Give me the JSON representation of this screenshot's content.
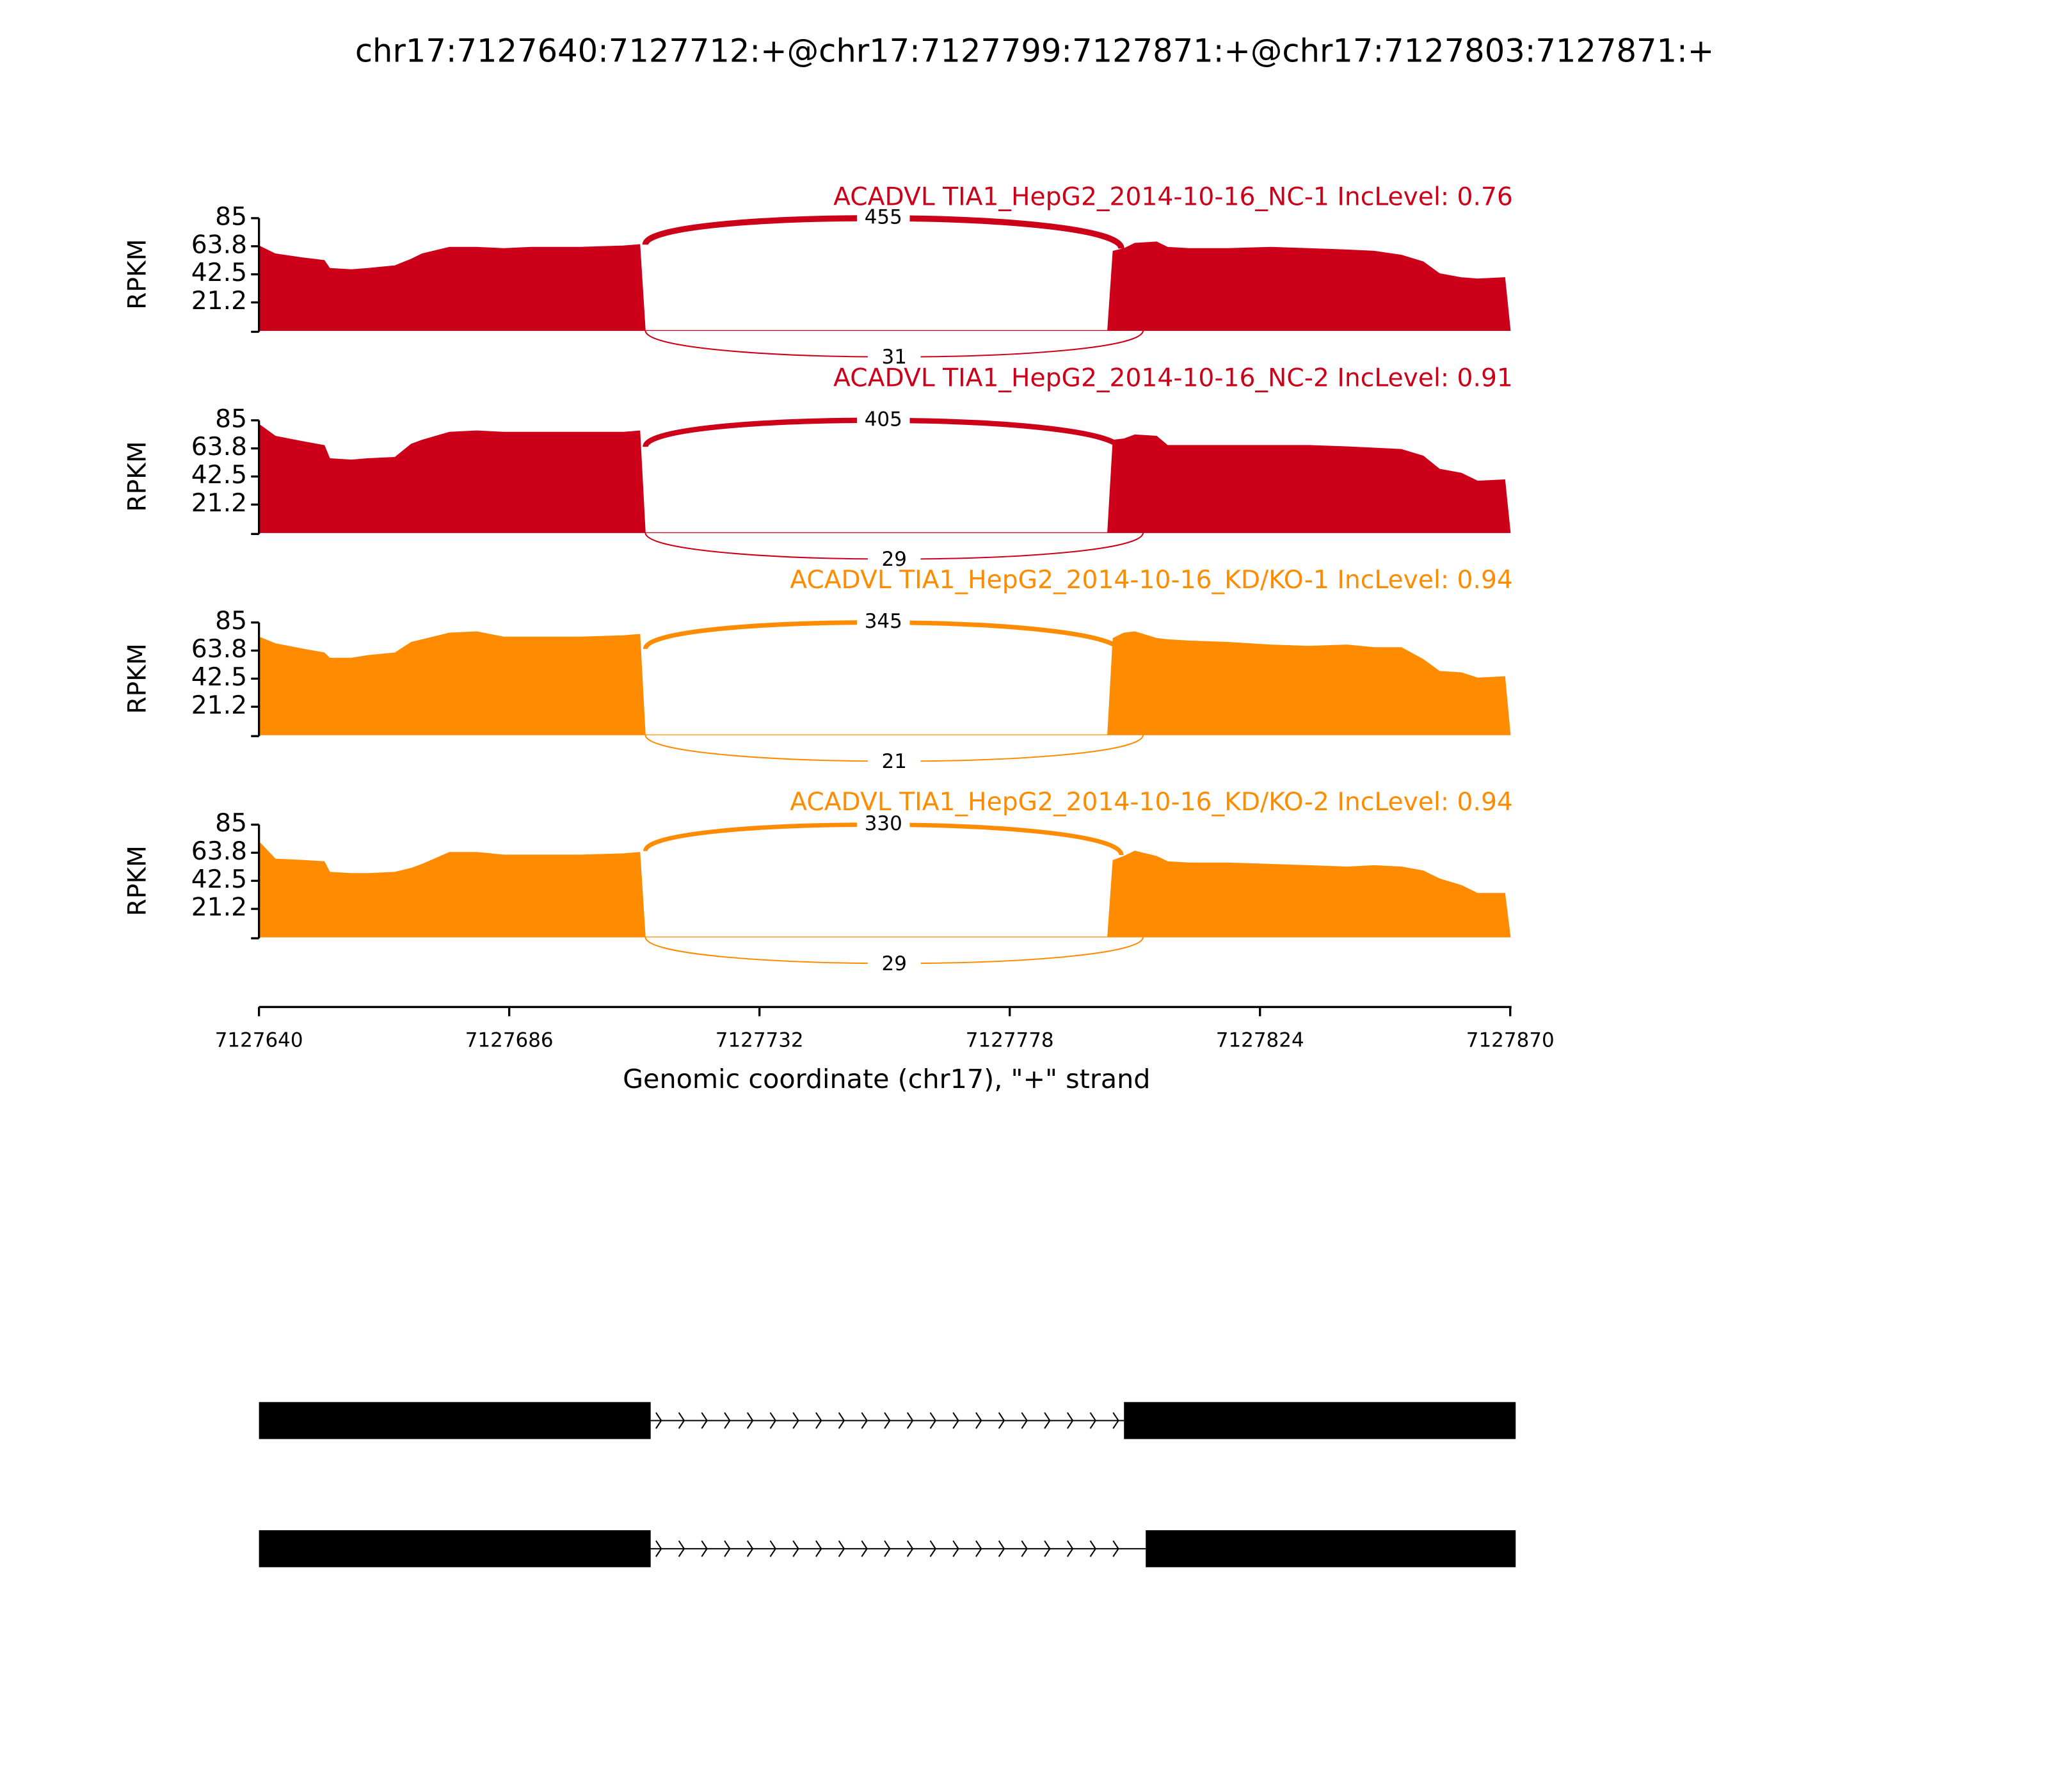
{
  "title": "chr17:7127640:7127712:+@chr17:7127799:7127871:+@chr17:7127803:7127871:+",
  "chart_data": [
    {
      "type": "area",
      "title": "ACADVL TIA1_HepG2_2014-10-16_NC-1 IncLevel: 0.76",
      "color": "#cc0018",
      "ylabel": "RPKM",
      "x": [
        7127640,
        7127643,
        7127648,
        7127652,
        7127653,
        7127657,
        7127660,
        7127665,
        7127668,
        7127670,
        7127675,
        7127680,
        7127685,
        7127690,
        7127699,
        7127707,
        7127710,
        7127711,
        7127796,
        7127797,
        7127799,
        7127801,
        7127805,
        7127807,
        7127811,
        7127818,
        7127826,
        7127833,
        7127840,
        7127845,
        7127850,
        7127854,
        7127857,
        7127861,
        7127864,
        7127869,
        7127870
      ],
      "values": [
        64,
        58,
        55,
        53,
        47,
        46,
        47,
        49,
        54,
        58,
        63,
        63,
        62,
        63,
        63,
        64,
        65,
        0,
        0,
        60,
        62,
        66,
        67,
        63,
        62,
        62,
        63,
        62,
        61,
        60,
        57,
        52,
        43,
        40,
        39,
        40,
        0
      ],
      "xlim": [
        7127640,
        7127870
      ],
      "ylim": [
        0,
        85
      ],
      "yticks": [
        {
          "value": 21.25,
          "label": "21.2"
        },
        42.5,
        {
          "value": 63.75,
          "label": "63.8"
        },
        85
      ],
      "junctions": [
        {
          "start": 7127712,
          "end": 7127799,
          "count": 455
        },
        {
          "start": 7127712,
          "end": 7127803,
          "count": 31
        }
      ]
    },
    {
      "type": "area",
      "title": "ACADVL TIA1_HepG2_2014-10-16_NC-2 IncLevel: 0.91",
      "color": "#cc0018",
      "ylabel": "RPKM",
      "x": [
        7127640,
        7127643,
        7127648,
        7127652,
        7127653,
        7127657,
        7127660,
        7127665,
        7127668,
        7127670,
        7127675,
        7127680,
        7127685,
        7127690,
        7127699,
        7127707,
        7127710,
        7127711,
        7127796,
        7127797,
        7127799,
        7127801,
        7127805,
        7127807,
        7127811,
        7127818,
        7127826,
        7127833,
        7127840,
        7127845,
        7127850,
        7127854,
        7127857,
        7127861,
        7127864,
        7127869,
        7127870
      ],
      "values": [
        82,
        73,
        69,
        66,
        56,
        55,
        56,
        57,
        67,
        70,
        76,
        77,
        76,
        76,
        76,
        76,
        77,
        0,
        0,
        70,
        71,
        74,
        73,
        66,
        66,
        66,
        66,
        66,
        65,
        64,
        63,
        58,
        48,
        45,
        39,
        40,
        0
      ],
      "xlim": [
        7127640,
        7127870
      ],
      "ylim": [
        0,
        85
      ],
      "yticks": [
        {
          "value": 21.25,
          "label": "21.2"
        },
        42.5,
        {
          "value": 63.75,
          "label": "63.8"
        },
        85
      ],
      "junctions": [
        {
          "start": 7127712,
          "end": 7127799,
          "count": 405
        },
        {
          "start": 7127712,
          "end": 7127803,
          "count": 29
        }
      ]
    },
    {
      "type": "area",
      "title": "ACADVL TIA1_HepG2_2014-10-16_KD/KO-1 IncLevel: 0.94",
      "color": "#ff8c00",
      "ylabel": "RPKM",
      "x": [
        7127640,
        7127643,
        7127648,
        7127652,
        7127653,
        7127657,
        7127660,
        7127665,
        7127668,
        7127670,
        7127675,
        7127680,
        7127685,
        7127690,
        7127699,
        7127707,
        7127710,
        7127711,
        7127796,
        7127797,
        7127799,
        7127801,
        7127805,
        7127807,
        7127811,
        7127818,
        7127826,
        7127833,
        7127840,
        7127845,
        7127850,
        7127854,
        7127857,
        7127861,
        7127864,
        7127869,
        7127870
      ],
      "values": [
        74,
        69,
        65,
        62,
        58,
        58,
        60,
        62,
        70,
        72,
        77,
        78,
        74,
        74,
        74,
        75,
        76,
        0,
        0,
        73,
        77,
        78,
        73,
        72,
        71,
        70,
        68,
        67,
        68,
        66,
        66,
        57,
        48,
        47,
        43,
        44,
        0
      ],
      "xlim": [
        7127640,
        7127870
      ],
      "ylim": [
        0,
        85
      ],
      "yticks": [
        {
          "value": 21.25,
          "label": "21.2"
        },
        42.5,
        {
          "value": 63.75,
          "label": "63.8"
        },
        85
      ],
      "junctions": [
        {
          "start": 7127712,
          "end": 7127799,
          "count": 345
        },
        {
          "start": 7127712,
          "end": 7127803,
          "count": 21
        }
      ]
    },
    {
      "type": "area",
      "title": "ACADVL TIA1_HepG2_2014-10-16_KD/KO-2 IncLevel: 0.94",
      "color": "#ff8c00",
      "ylabel": "RPKM",
      "x": [
        7127640,
        7127643,
        7127648,
        7127652,
        7127653,
        7127657,
        7127660,
        7127665,
        7127668,
        7127670,
        7127675,
        7127680,
        7127685,
        7127690,
        7127699,
        7127707,
        7127710,
        7127711,
        7127796,
        7127797,
        7127799,
        7127801,
        7127805,
        7127807,
        7127811,
        7127818,
        7127826,
        7127833,
        7127840,
        7127845,
        7127850,
        7127854,
        7127857,
        7127861,
        7127864,
        7127869,
        7127870
      ],
      "values": [
        72,
        59,
        58,
        57,
        49,
        48,
        48,
        49,
        52,
        55,
        64,
        64,
        62,
        62,
        62,
        63,
        64,
        0,
        0,
        58,
        61,
        65,
        61,
        57,
        56,
        56,
        55,
        54,
        53,
        54,
        53,
        50,
        44,
        39,
        33,
        33,
        0
      ],
      "xlim": [
        7127640,
        7127870
      ],
      "ylim": [
        0,
        85
      ],
      "yticks": [
        {
          "value": 21.25,
          "label": "21.2"
        },
        42.5,
        {
          "value": 63.75,
          "label": "63.8"
        },
        85
      ],
      "junctions": [
        {
          "start": 7127712,
          "end": 7127799,
          "count": 330
        },
        {
          "start": 7127712,
          "end": 7127803,
          "count": 29
        }
      ],
      "xticks": [
        7127640,
        7127686,
        7127732,
        7127778,
        7127824,
        7127870
      ],
      "xlabel": "Genomic coordinate (chr17), \"+\" strand"
    }
  ],
  "gene_model": {
    "transcripts": [
      {
        "exons": [
          [
            7127640,
            7127712
          ],
          [
            7127799,
            7127871
          ]
        ]
      },
      {
        "exons": [
          [
            7127640,
            7127712
          ],
          [
            7127803,
            7127871
          ]
        ]
      }
    ]
  }
}
